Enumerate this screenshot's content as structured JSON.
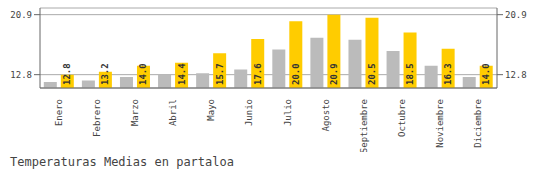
{
  "chart_data": {
    "type": "bar",
    "title": "Temperaturas Medias en partaloa",
    "categories": [
      "Enero",
      "Febrero",
      "Marzo",
      "Abril",
      "Mayo",
      "Junio",
      "Julio",
      "Agosto",
      "Septiembre",
      "Octubre",
      "Noviembre",
      "Diciembre"
    ],
    "ylim": [
      11.0,
      21.8
    ],
    "yticks": [
      12.8,
      20.9
    ],
    "grid": true,
    "series": [
      {
        "color": "#BBBBBB",
        "values": [
          11.8,
          12.0,
          12.5,
          12.8,
          13.0,
          13.5,
          16.2,
          17.8,
          17.5,
          16.0,
          14.0,
          12.5
        ]
      },
      {
        "color": "#FFCC00",
        "values": [
          12.8,
          13.2,
          14.0,
          14.4,
          15.7,
          17.6,
          20.0,
          20.9,
          20.5,
          18.5,
          16.3,
          14.0
        ],
        "data_labels": true,
        "value_labels": [
          "12.8",
          "13.2",
          "14.0",
          "14.4",
          "15.7",
          "17.6",
          "20.0",
          "20.9",
          "20.5",
          "18.5",
          "16.3",
          "14.0"
        ]
      }
    ]
  }
}
